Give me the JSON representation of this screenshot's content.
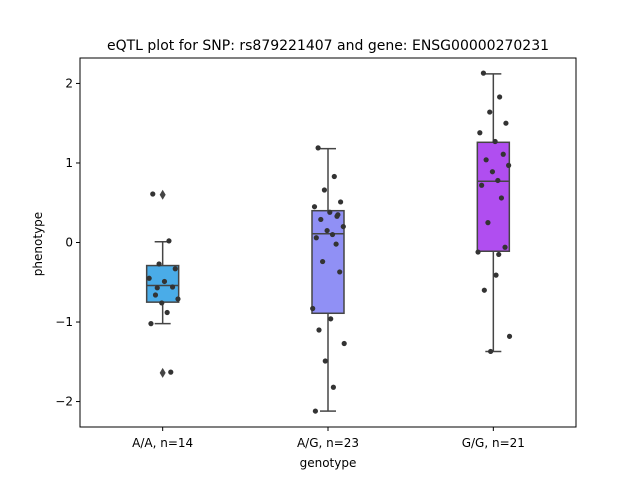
{
  "chart_data": {
    "type": "box",
    "title": "eQTL plot for SNP: rs879221407 and gene: ENSG00000270231",
    "xlabel": "genotype",
    "ylabel": "phenotype",
    "ylim": [
      -2.32,
      2.32
    ],
    "yticks": [
      -2,
      -1,
      0,
      1,
      2
    ],
    "ytick_labels": [
      "−2",
      "−1",
      "0",
      "1",
      "2"
    ],
    "grid": false,
    "groups": [
      {
        "label": "A/A, n=14",
        "color": "#4aace8",
        "q1": -0.75,
        "median": -0.54,
        "q3": -0.29,
        "whisker_low": -1.02,
        "whisker_high": 0.01,
        "outliers": [
          0.6,
          -1.64
        ],
        "points": [
          0.61,
          0.02,
          -0.27,
          -0.33,
          -0.45,
          -0.49,
          -0.56,
          -0.66,
          -0.71,
          -0.76,
          -0.88,
          -1.02,
          -1.63,
          -0.57
        ]
      },
      {
        "label": "A/G, n=23",
        "color": "#9090f5",
        "q1": -0.89,
        "median": 0.11,
        "q3": 0.4,
        "whisker_low": -2.12,
        "whisker_high": 1.18,
        "outliers": [],
        "points": [
          1.19,
          0.83,
          0.66,
          0.51,
          0.45,
          0.38,
          0.35,
          0.29,
          0.2,
          0.15,
          0.1,
          0.06,
          -0.02,
          -0.24,
          -0.37,
          -0.83,
          -0.96,
          -1.1,
          -1.27,
          -1.49,
          -1.82,
          -2.12,
          0.33
        ]
      },
      {
        "label": "G/G, n=21",
        "color": "#b04ef0",
        "q1": -0.11,
        "median": 0.77,
        "q3": 1.26,
        "whisker_low": -1.37,
        "whisker_high": 2.12,
        "outliers": [],
        "points": [
          2.13,
          1.83,
          1.64,
          1.5,
          1.38,
          1.27,
          1.11,
          1.04,
          0.97,
          0.89,
          0.78,
          0.72,
          0.56,
          0.25,
          -0.06,
          -0.12,
          -0.41,
          -0.6,
          -1.18,
          -1.37,
          -0.15
        ]
      }
    ]
  }
}
